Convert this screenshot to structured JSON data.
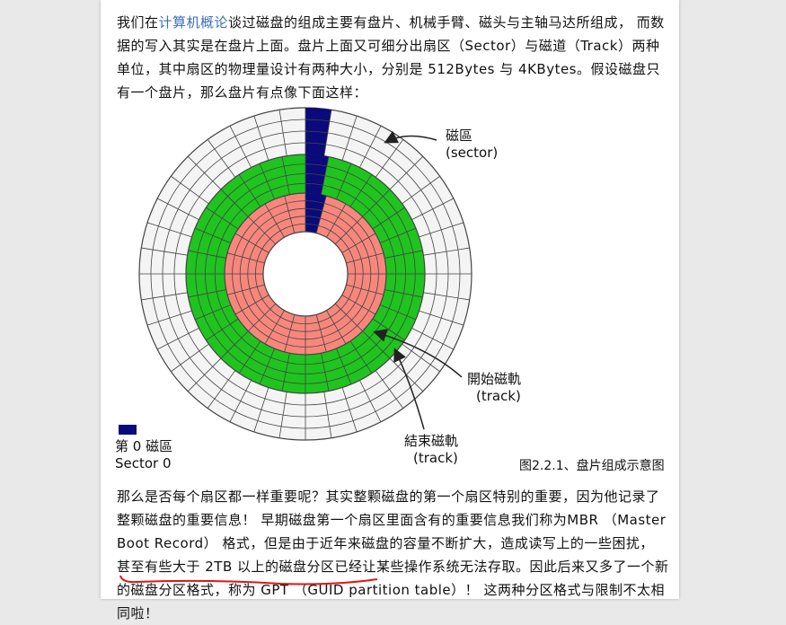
{
  "intro": {
    "before_link": "我们在",
    "link_text": "计算机概论",
    "after_link": "谈过磁盘的组成主要有盘片、机械手臂、磁头与主轴马达所组成， 而数据的写入其实是在盘片上面。盘片上面又可细分出扇区（Sector）与磁道（Track）两种单位，其中扇区的物理量设计有两种大小，分别是 512Bytes 与 4KBytes。假设磁盘只有一个盘片，那么盘片有点像下面这样："
  },
  "figure": {
    "label_sector_zh": "磁區",
    "label_sector_en": "(sector)",
    "label_start_track_zh": "開始磁軌",
    "label_start_track_en": "(track)",
    "label_end_track_zh": "結束磁軌",
    "label_end_track_en": "(track)",
    "legend_zh": "第 0 磁區",
    "legend_en": "Sector 0",
    "caption": "图2.2.1、盘片组成示意图",
    "colors": {
      "outer_zone": "#f4f4f4",
      "middle_zone": "#1fc41f",
      "inner_zone": "#f7877c",
      "sector0": "#0a0a7a",
      "lines": "#444444"
    }
  },
  "body2": {
    "text_main": "那么是否每个扇区都一样重要呢？其实整颗磁盘的第一个扇区特别的重要，因为他记录了整颗磁盘的重要信息！ 早期磁盘第一个扇区里面含有的重要信息我们称为MBR （Master Boot Record） 格式，但是由于近年来磁盘的容量不断扩大，造成读写上的一些困扰， 甚至有些大于 2TB 以上的磁盘分区已经让某些操作系统无法存取。因此后来又多了一个新的磁盘分区格",
    "text_last_a": "式",
    "text_last_b": "，称为 GPT （GUID partition table）！",
    "text_last_c": " 这两种分区格式与限制不太相同啦！"
  }
}
